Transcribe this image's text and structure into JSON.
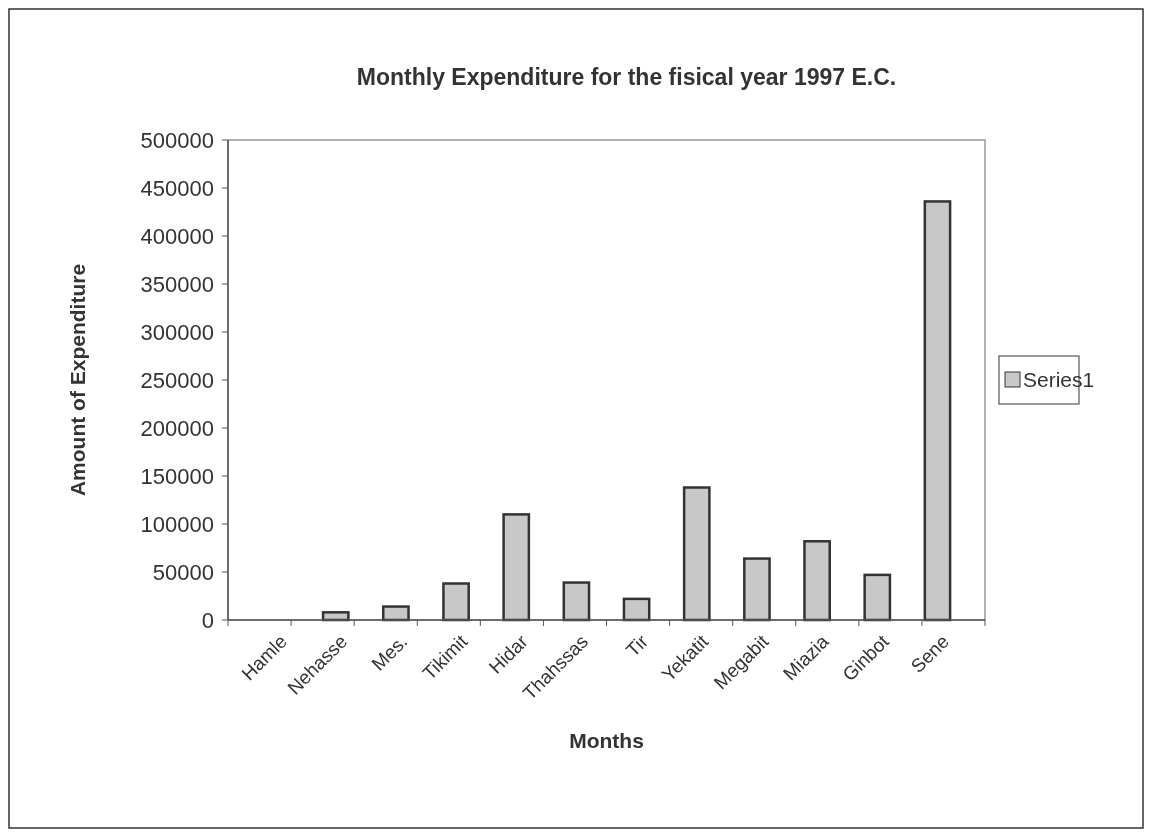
{
  "chart_data": {
    "type": "bar",
    "title": "Monthly Expenditure for the fisical year 1997 E.C.",
    "xlabel": "Months",
    "ylabel": "Amount of Expenditure",
    "categories": [
      "Hamle",
      "Nehasse",
      "Mes.",
      "Tikimit",
      "Hidar",
      "Thahssas",
      "Tir",
      "Yekatit",
      "Megabit",
      "Miazia",
      "Ginbot",
      "Sene"
    ],
    "series": [
      {
        "name": "Series1",
        "color": "#c8c8c8",
        "values": [
          0,
          8000,
          14000,
          38000,
          110000,
          39000,
          22000,
          138000,
          64000,
          82000,
          47000,
          436000
        ]
      }
    ],
    "ylim": [
      0,
      500000
    ],
    "yticks": [
      0,
      50000,
      100000,
      150000,
      200000,
      250000,
      300000,
      350000,
      400000,
      450000,
      500000
    ],
    "grid": false,
    "legend": "right"
  }
}
